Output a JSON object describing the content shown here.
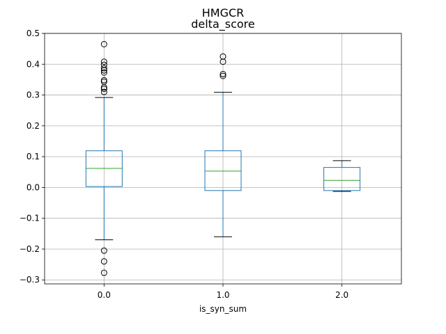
{
  "chart_data": {
    "type": "box",
    "suptitle": "HMGCR",
    "title": "delta_score",
    "xlabel": "is_syn_sum",
    "ylabel": "",
    "ylim": [
      -0.313,
      0.5
    ],
    "y_ticks": [
      -0.3,
      -0.2,
      -0.1,
      0.0,
      0.1,
      0.2,
      0.3,
      0.4,
      0.5
    ],
    "y_tick_labels": [
      "−0.3",
      "−0.2",
      "−0.1",
      "0.0",
      "0.1",
      "0.2",
      "0.3",
      "0.4",
      "0.5"
    ],
    "grid": true,
    "categories": [
      "0.0",
      "1.0",
      "2.0"
    ],
    "boxes": [
      {
        "category": "0.0",
        "whisker_low": -0.17,
        "q1": 0.003,
        "median": 0.062,
        "q3": 0.119,
        "whisker_high": 0.292,
        "outliers": [
          0.465,
          0.408,
          0.398,
          0.387,
          0.38,
          0.373,
          0.348,
          0.343,
          0.325,
          0.32,
          0.31,
          -0.205,
          -0.24,
          -0.277
        ]
      },
      {
        "category": "1.0",
        "whisker_low": -0.16,
        "q1": -0.01,
        "median": 0.053,
        "q3": 0.119,
        "whisker_high": 0.309,
        "outliers": [
          0.425,
          0.408,
          0.368,
          0.362
        ]
      },
      {
        "category": "2.0",
        "whisker_low": -0.013,
        "q1": -0.01,
        "median": 0.023,
        "q3": 0.065,
        "whisker_high": 0.087,
        "outliers": []
      }
    ]
  },
  "colors": {
    "box": "#1f77b4",
    "median": "#2ca02c",
    "whisker_cap": "#000000",
    "grid": "#b0b0b0",
    "outlier": "#000000"
  }
}
